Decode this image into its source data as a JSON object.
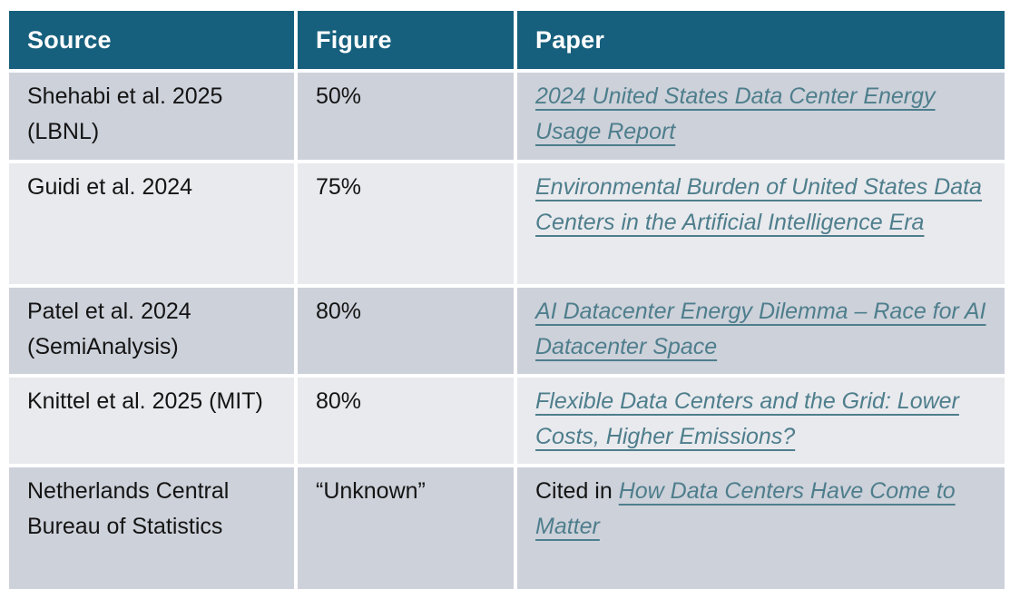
{
  "theme": {
    "header_bg": "#17607d",
    "header_text": "#ffffff",
    "row_odd_bg": "#cdd1da",
    "row_even_bg": "#e9eaee",
    "body_text": "#141414",
    "link_color": "#4e7e8c",
    "gap_color": "#ffffff"
  },
  "table": {
    "columns": [
      "Source",
      "Figure",
      "Paper"
    ],
    "rows": [
      {
        "source": "Shehabi et al. 2025 (LBNL)",
        "figure": "50%",
        "paper_prefix": "",
        "paper_link": "2024 United States Data Center Energy Usage Report"
      },
      {
        "source": "Guidi et al. 2024",
        "figure": "75%",
        "paper_prefix": "",
        "paper_link": "Environmental Burden of United States Data Centers in the Artificial Intelligence Era"
      },
      {
        "source": "Patel et al. 2024 (SemiAnalysis)",
        "figure": "80%",
        "paper_prefix": "",
        "paper_link": "AI Datacenter Energy Dilemma – Race for AI Datacenter Space"
      },
      {
        "source": "Knittel et al. 2025 (MIT)",
        "figure": "80%",
        "paper_prefix": "",
        "paper_link": "Flexible Data Centers and the Grid: Lower Costs, Higher Emissions?"
      },
      {
        "source": "Netherlands Central Bureau of Statistics",
        "figure": "“Unknown”",
        "paper_prefix": "Cited in",
        "paper_link": "How Data Centers Have Come to Matter"
      }
    ]
  }
}
